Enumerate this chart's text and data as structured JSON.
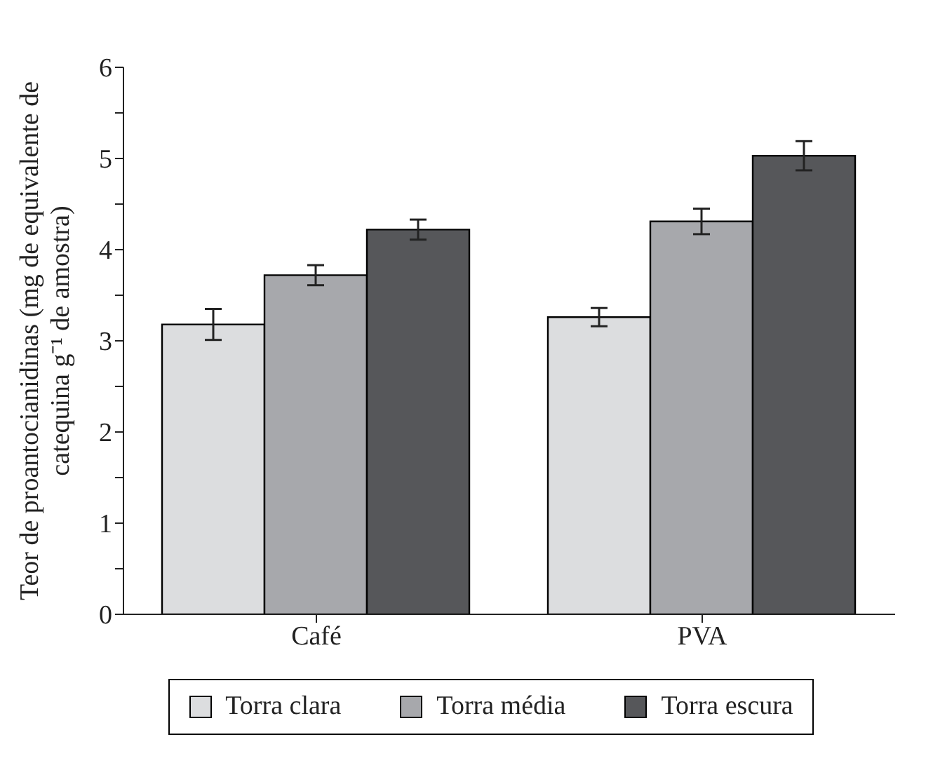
{
  "chart_data": {
    "type": "bar",
    "ylabel": "Teor de proantocianidinas (mg de equivalente de catequina g⁻¹ de amostra)",
    "categories": [
      "Café",
      "PVA"
    ],
    "series": [
      {
        "name": "Torra clara",
        "color": "#dcdddf",
        "values": [
          3.18,
          3.26
        ],
        "errors": [
          0.17,
          0.1
        ]
      },
      {
        "name": "Torra média",
        "color": "#a7a8ac",
        "values": [
          3.72,
          4.31
        ],
        "errors": [
          0.11,
          0.14
        ]
      },
      {
        "name": "Torra escura",
        "color": "#56575a",
        "values": [
          4.22,
          5.03
        ],
        "errors": [
          0.11,
          0.16
        ]
      }
    ],
    "ylim": [
      0,
      6
    ],
    "yticks": [
      0,
      {
        "value": 0.5,
        "label": null
      },
      1,
      {
        "value": 1.5,
        "label": null
      },
      2,
      {
        "value": 2.5,
        "label": null
      },
      3,
      {
        "value": 3.5,
        "label": null
      },
      4,
      {
        "value": 4.5,
        "label": null
      },
      5,
      {
        "value": 5.5,
        "label": null
      },
      6
    ],
    "grid": false,
    "legend": "bottom"
  }
}
